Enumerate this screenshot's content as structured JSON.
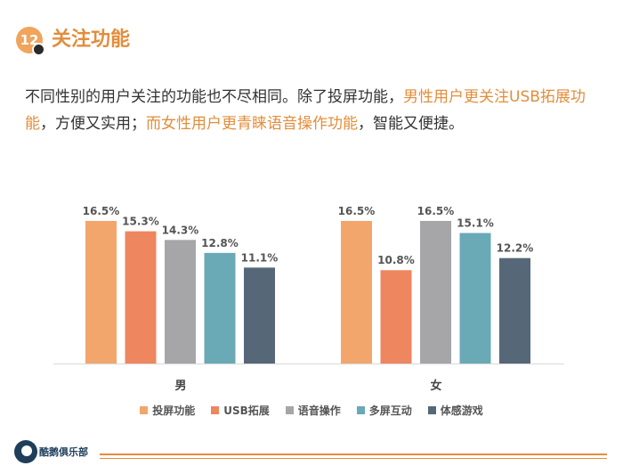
{
  "header": {
    "number": "12",
    "title": "关注功能"
  },
  "description": {
    "p1": "不同性别的用户关注的功能也不尽相同。除了投屏功能，",
    "p2": "男性用户更关注USB拓展功能",
    "p3": "，方便又实用；",
    "p4": "而女性用户更青睐语音操作功能",
    "p5": "，智能又便捷。"
  },
  "chart_data": {
    "type": "bar",
    "categories": [
      "男",
      "女"
    ],
    "series": [
      {
        "name": "投屏功能",
        "values": [
          16.5,
          16.5
        ],
        "color": "#f2a66c"
      },
      {
        "name": "USB拓展",
        "values": [
          15.3,
          10.8
        ],
        "color": "#ee8660"
      },
      {
        "name": "语音操作",
        "values": [
          14.3,
          16.5
        ],
        "color": "#a6a6a8"
      },
      {
        "name": "多屏互动",
        "values": [
          12.8,
          15.1
        ],
        "color": "#6aa9b6"
      },
      {
        "name": "体感游戏",
        "values": [
          11.1,
          12.2
        ],
        "color": "#566878"
      }
    ],
    "labels": [
      [
        "16.5%",
        "16.5%"
      ],
      [
        "15.3%",
        "10.8%"
      ],
      [
        "14.3%",
        "16.5%"
      ],
      [
        "12.8%",
        "15.1%"
      ],
      [
        "11.1%",
        "12.2%"
      ]
    ],
    "ylim": [
      0,
      20
    ],
    "grid": false,
    "legend_position": "bottom"
  },
  "footer": {
    "logo_text": "酷鹅俱乐部"
  }
}
